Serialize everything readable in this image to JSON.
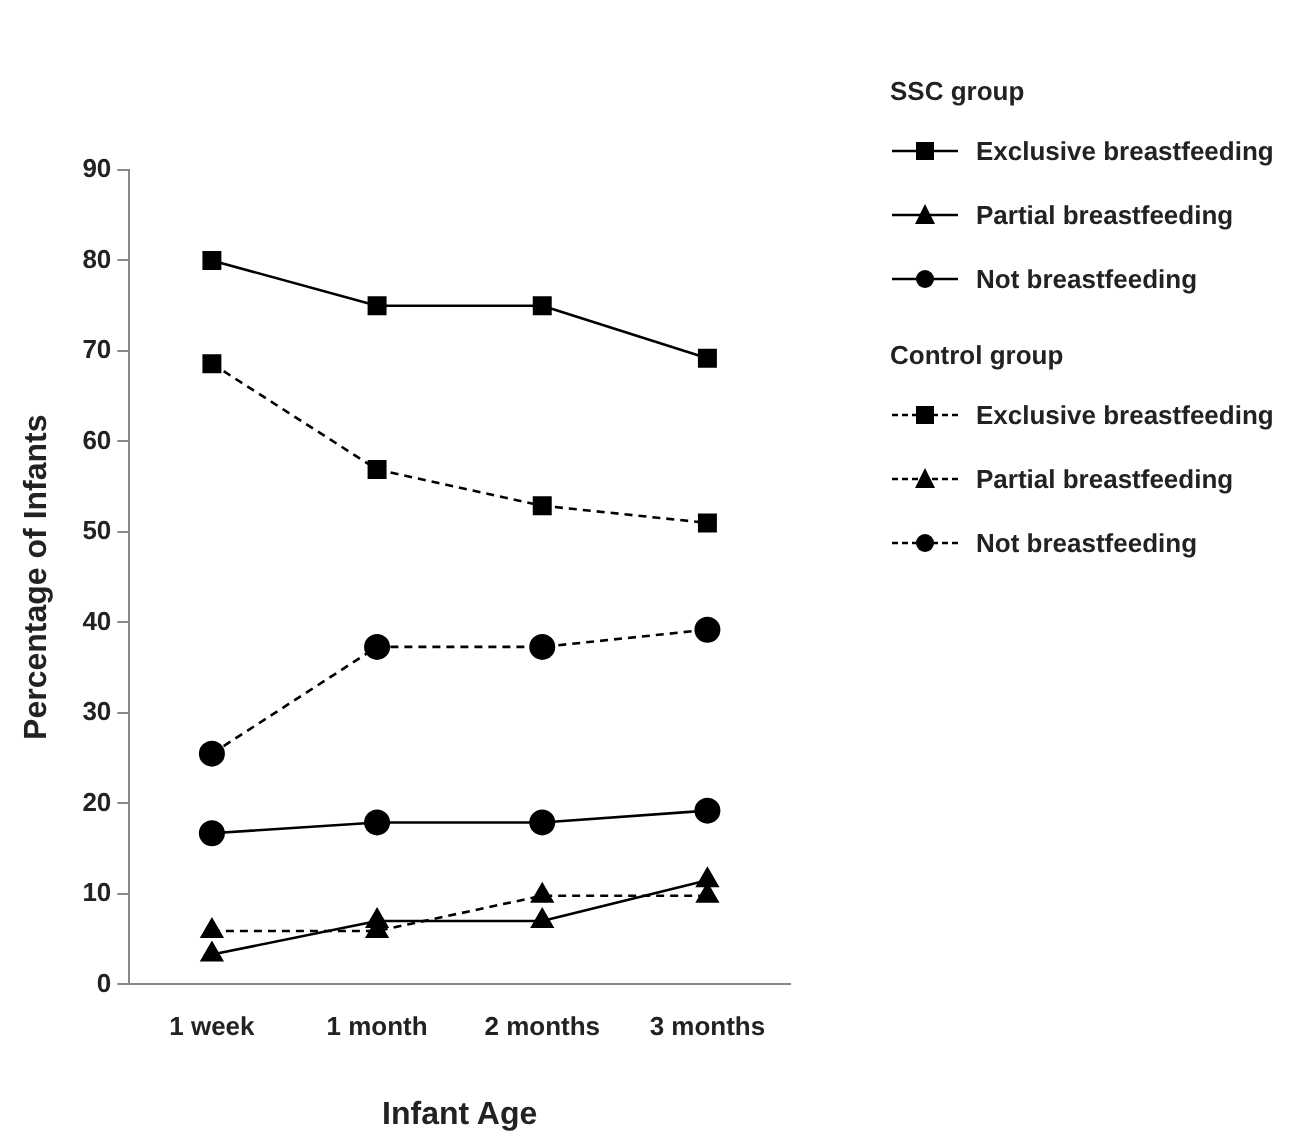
{
  "chart_data": {
    "type": "line",
    "xlabel": "Infant Age",
    "ylabel": "Percentage of Infants",
    "legend_title": [
      "SSC group",
      "Control group"
    ],
    "categories": [
      "1 week",
      "1 month",
      "2 months",
      "3 months"
    ],
    "ylim": [
      0,
      90
    ],
    "yticks": [
      0,
      10,
      20,
      30,
      40,
      50,
      60,
      70,
      80,
      90
    ],
    "grid": false,
    "legend": "top right",
    "series": [
      {
        "name": "Exclusive breastfeeding",
        "color": "#000000",
        "marker": "square",
        "line_style": "solid",
        "values": [
          80,
          75,
          75,
          69.2
        ]
      },
      {
        "name": "Partial breastfeeding",
        "color": "#000000",
        "marker": "triangle",
        "line_style": "solid",
        "values": [
          3.3,
          7,
          7,
          11.5
        ]
      },
      {
        "name": "Not breastfeeding",
        "color": "#000000",
        "marker": "circle",
        "line_style": "solid",
        "values": [
          16.7,
          17.9,
          17.9,
          19.2
        ]
      },
      {
        "name": "Exclusive breastfeeding",
        "color": "#000000",
        "marker": "square",
        "line_style": "dashed",
        "values": [
          68.6,
          56.9,
          52.9,
          51
        ]
      },
      {
        "name": "Partial breastfeeding",
        "color": "#000000",
        "marker": "triangle",
        "line_style": "dashed",
        "values": [
          5.9,
          5.9,
          9.8,
          9.8
        ]
      },
      {
        "name": "Not breastfeeding",
        "color": "#000000",
        "marker": "circle",
        "line_style": "dashed",
        "values": [
          25.5,
          37.3,
          37.3,
          39.2
        ]
      }
    ]
  }
}
